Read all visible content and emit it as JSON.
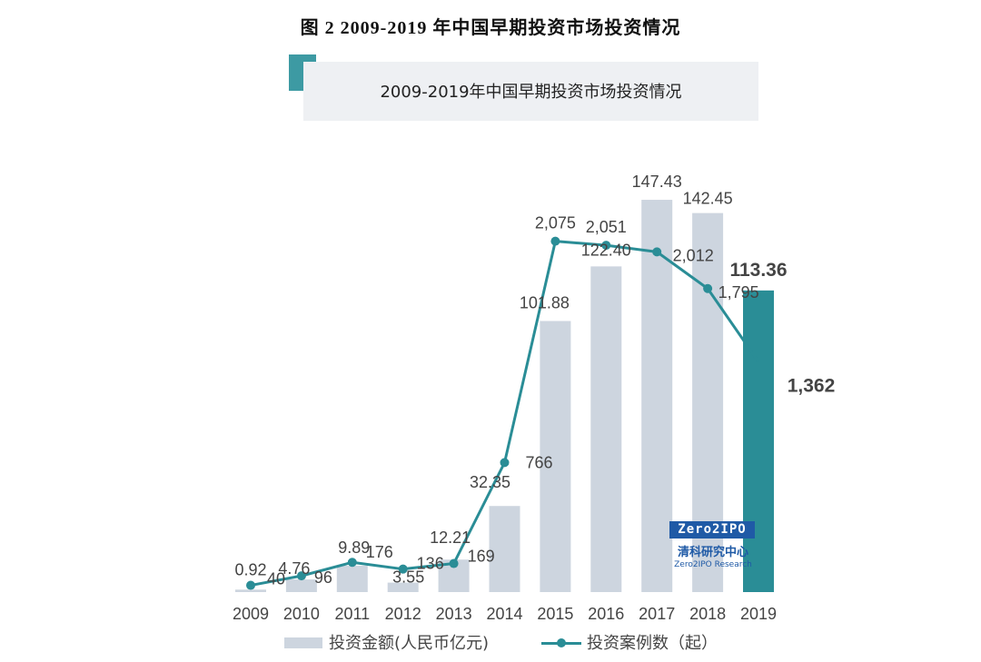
{
  "figure_title": "图 2 2009-2019 年中国早期投资市场投资情况",
  "banner_title": "2009-2019年中国早期投资市场投资情况",
  "colors": {
    "bar": "#cdd5df",
    "bar_highlight": "#2a8d96",
    "line": "#2a8d96",
    "accent": "#3d9aa3",
    "logo": "#1f5aa6"
  },
  "chart_data": {
    "type": "bar",
    "title": "2009-2019年中国早期投资市场投资情况",
    "categories": [
      "2009",
      "2010",
      "2011",
      "2012",
      "2013",
      "2014",
      "2015",
      "2016",
      "2017",
      "2018",
      "2019"
    ],
    "series": [
      {
        "name": "投资金额(人民币亿元)",
        "type": "bar",
        "values": [
          0.92,
          4.76,
          9.89,
          3.55,
          12.21,
          32.35,
          101.88,
          122.4,
          147.43,
          142.45,
          113.36
        ],
        "labels": [
          "0.92",
          "4.76",
          "9.89",
          "3.55",
          "12.21",
          "32.35",
          "101.88",
          "122.40",
          "147.43",
          "142.45",
          "113.36"
        ]
      },
      {
        "name": "投资案例数（起）",
        "type": "line",
        "values": [
          40,
          96,
          176,
          136,
          169,
          766,
          2075,
          2051,
          2012,
          1795,
          1362
        ],
        "labels": [
          "40",
          "96",
          "176",
          "136",
          "169",
          "766",
          "2,075",
          "2,051",
          "2,012",
          "1,795",
          "1,362"
        ]
      }
    ],
    "highlight_category": "2019",
    "legend_position": "bottom"
  },
  "logo": {
    "brand": "Zero2IPO",
    "name_cn": "清科研究中心",
    "name_en": "Zero2IPO Research"
  }
}
